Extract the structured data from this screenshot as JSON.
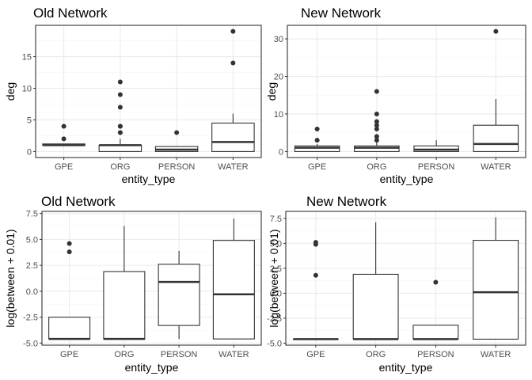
{
  "colors": {
    "grid_major": "#ebebeb",
    "grid_minor": "#f5f5f5",
    "panel_border": "#333333",
    "box": "#333333",
    "text": "#4d4d4d"
  },
  "chart_data": [
    {
      "type": "boxplot",
      "title": "Old Network",
      "xlabel": "entity_type",
      "ylabel": "deg",
      "categories": [
        "GPE",
        "ORG",
        "PERSON",
        "WATER"
      ],
      "ylim": [
        -0.95,
        19.95
      ],
      "yticks": [
        0,
        5,
        10,
        15
      ],
      "ytick_labels": [
        "0",
        "5",
        "10",
        "15"
      ],
      "grid": true,
      "boxes": [
        {
          "min": 1,
          "q1": 1,
          "median": 1,
          "q3": 1.2,
          "max": 1.2,
          "outliers": [
            4,
            2
          ]
        },
        {
          "min": 0,
          "q1": 0,
          "median": 1,
          "q3": 1,
          "max": 2,
          "outliers": [
            11,
            9,
            7,
            4,
            4,
            3,
            3
          ]
        },
        {
          "min": 0,
          "q1": 0,
          "median": 0.3,
          "q3": 0.8,
          "max": 0.8,
          "outliers": [
            3
          ]
        },
        {
          "min": 0,
          "q1": 0,
          "median": 1.5,
          "q3": 4.5,
          "max": 6,
          "outliers": [
            19,
            14
          ]
        }
      ]
    },
    {
      "type": "boxplot",
      "title": "New Network",
      "xlabel": "entity_type",
      "ylabel": "deg",
      "categories": [
        "GPE",
        "ORG",
        "PERSON",
        "WATER"
      ],
      "ylim": [
        -1.6,
        33.6
      ],
      "yticks": [
        0,
        10,
        20,
        30
      ],
      "ytick_labels": [
        "0",
        "10",
        "20",
        "30"
      ],
      "grid": true,
      "boxes": [
        {
          "min": 0,
          "q1": 0,
          "median": 1,
          "q3": 1.5,
          "max": 2,
          "outliers": [
            6,
            3
          ]
        },
        {
          "min": 0,
          "q1": 0,
          "median": 1,
          "q3": 1.5,
          "max": 2.5,
          "outliers": [
            16,
            10,
            8,
            7,
            6,
            4,
            3
          ]
        },
        {
          "min": 0,
          "q1": 0,
          "median": 0.5,
          "q3": 1.5,
          "max": 3,
          "outliers": []
        },
        {
          "min": 0,
          "q1": 0,
          "median": 2,
          "q3": 7,
          "max": 14,
          "outliers": [
            32
          ]
        }
      ]
    },
    {
      "type": "boxplot",
      "title": "Old Network",
      "xlabel": "entity_type",
      "ylabel": "log(between + 0.01)",
      "categories": [
        "GPE",
        "ORG",
        "PERSON",
        "WATER"
      ],
      "ylim": [
        -5.2,
        7.7
      ],
      "yticks": [
        -5,
        -2.5,
        0,
        2.5,
        5,
        7.5
      ],
      "ytick_labels": [
        "-5.0",
        "-2.5",
        "0.0",
        "2.5",
        "5.0",
        "7.5"
      ],
      "grid": true,
      "boxes": [
        {
          "min": -4.6,
          "q1": -4.6,
          "median": -4.6,
          "q3": -2.5,
          "max": -2.5,
          "outliers": [
            4.6,
            3.8
          ]
        },
        {
          "min": -4.6,
          "q1": -4.6,
          "median": -4.6,
          "q3": 1.9,
          "max": 6.3,
          "outliers": []
        },
        {
          "min": -4.6,
          "q1": -3.3,
          "median": 0.9,
          "q3": 2.6,
          "max": 3.9,
          "outliers": []
        },
        {
          "min": -4.6,
          "q1": -4.6,
          "median": -0.3,
          "q3": 4.9,
          "max": 7.0,
          "outliers": []
        }
      ]
    },
    {
      "type": "boxplot",
      "title": "New Network",
      "xlabel": "entity_type",
      "ylabel": "log(between + 0.01)",
      "categories": [
        "GPE",
        "ORG",
        "PERSON",
        "WATER"
      ],
      "ylim": [
        -5.2,
        8.2
      ],
      "yticks": [
        -5,
        -2.5,
        0,
        2.5,
        5,
        7.5
      ],
      "ytick_labels": [
        "-5.0",
        "-2.5",
        "0.0",
        "2.5",
        "5.0",
        "7.5"
      ],
      "grid": true,
      "boxes": [
        {
          "min": -4.6,
          "q1": -4.6,
          "median": -4.6,
          "q3": -4.6,
          "max": -4.6,
          "outliers": [
            5.1,
            4.9,
            1.8
          ]
        },
        {
          "min": -4.6,
          "q1": -4.6,
          "median": -4.6,
          "q3": 1.9,
          "max": 7.1,
          "outliers": []
        },
        {
          "min": -4.6,
          "q1": -4.6,
          "median": -4.6,
          "q3": -3.2,
          "max": -3.2,
          "outliers": [
            1.1
          ]
        },
        {
          "min": -4.6,
          "q1": -4.6,
          "median": 0.1,
          "q3": 5.3,
          "max": 7.6,
          "outliers": []
        }
      ]
    }
  ]
}
